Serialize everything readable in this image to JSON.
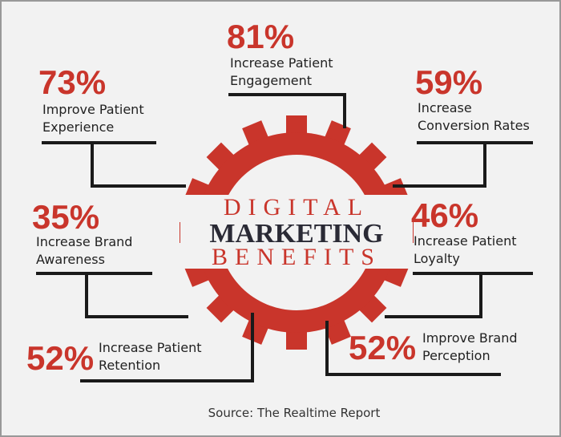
{
  "heading": {
    "line1": "DIGITAL",
    "line2": "MARKETING",
    "line3": "BENEFITS"
  },
  "items": [
    {
      "percent": "81%",
      "label1": "Increase Patient",
      "label2": "Engagement"
    },
    {
      "percent": "73%",
      "label1": "Improve Patient",
      "label2": "Experience"
    },
    {
      "percent": "59%",
      "label1": "Increase",
      "label2": "Conversion Rates"
    },
    {
      "percent": "35%",
      "label1": "Increase Brand",
      "label2": "Awareness"
    },
    {
      "percent": "46%",
      "label1": "Increase Patient",
      "label2": "Loyalty"
    },
    {
      "percent": "52%",
      "label1": "Increase Patient",
      "label2": "Retention"
    },
    {
      "percent": "52%",
      "label1": "Improve Brand",
      "label2": "Perception"
    }
  ],
  "source": "Source: The Realtime Report"
}
